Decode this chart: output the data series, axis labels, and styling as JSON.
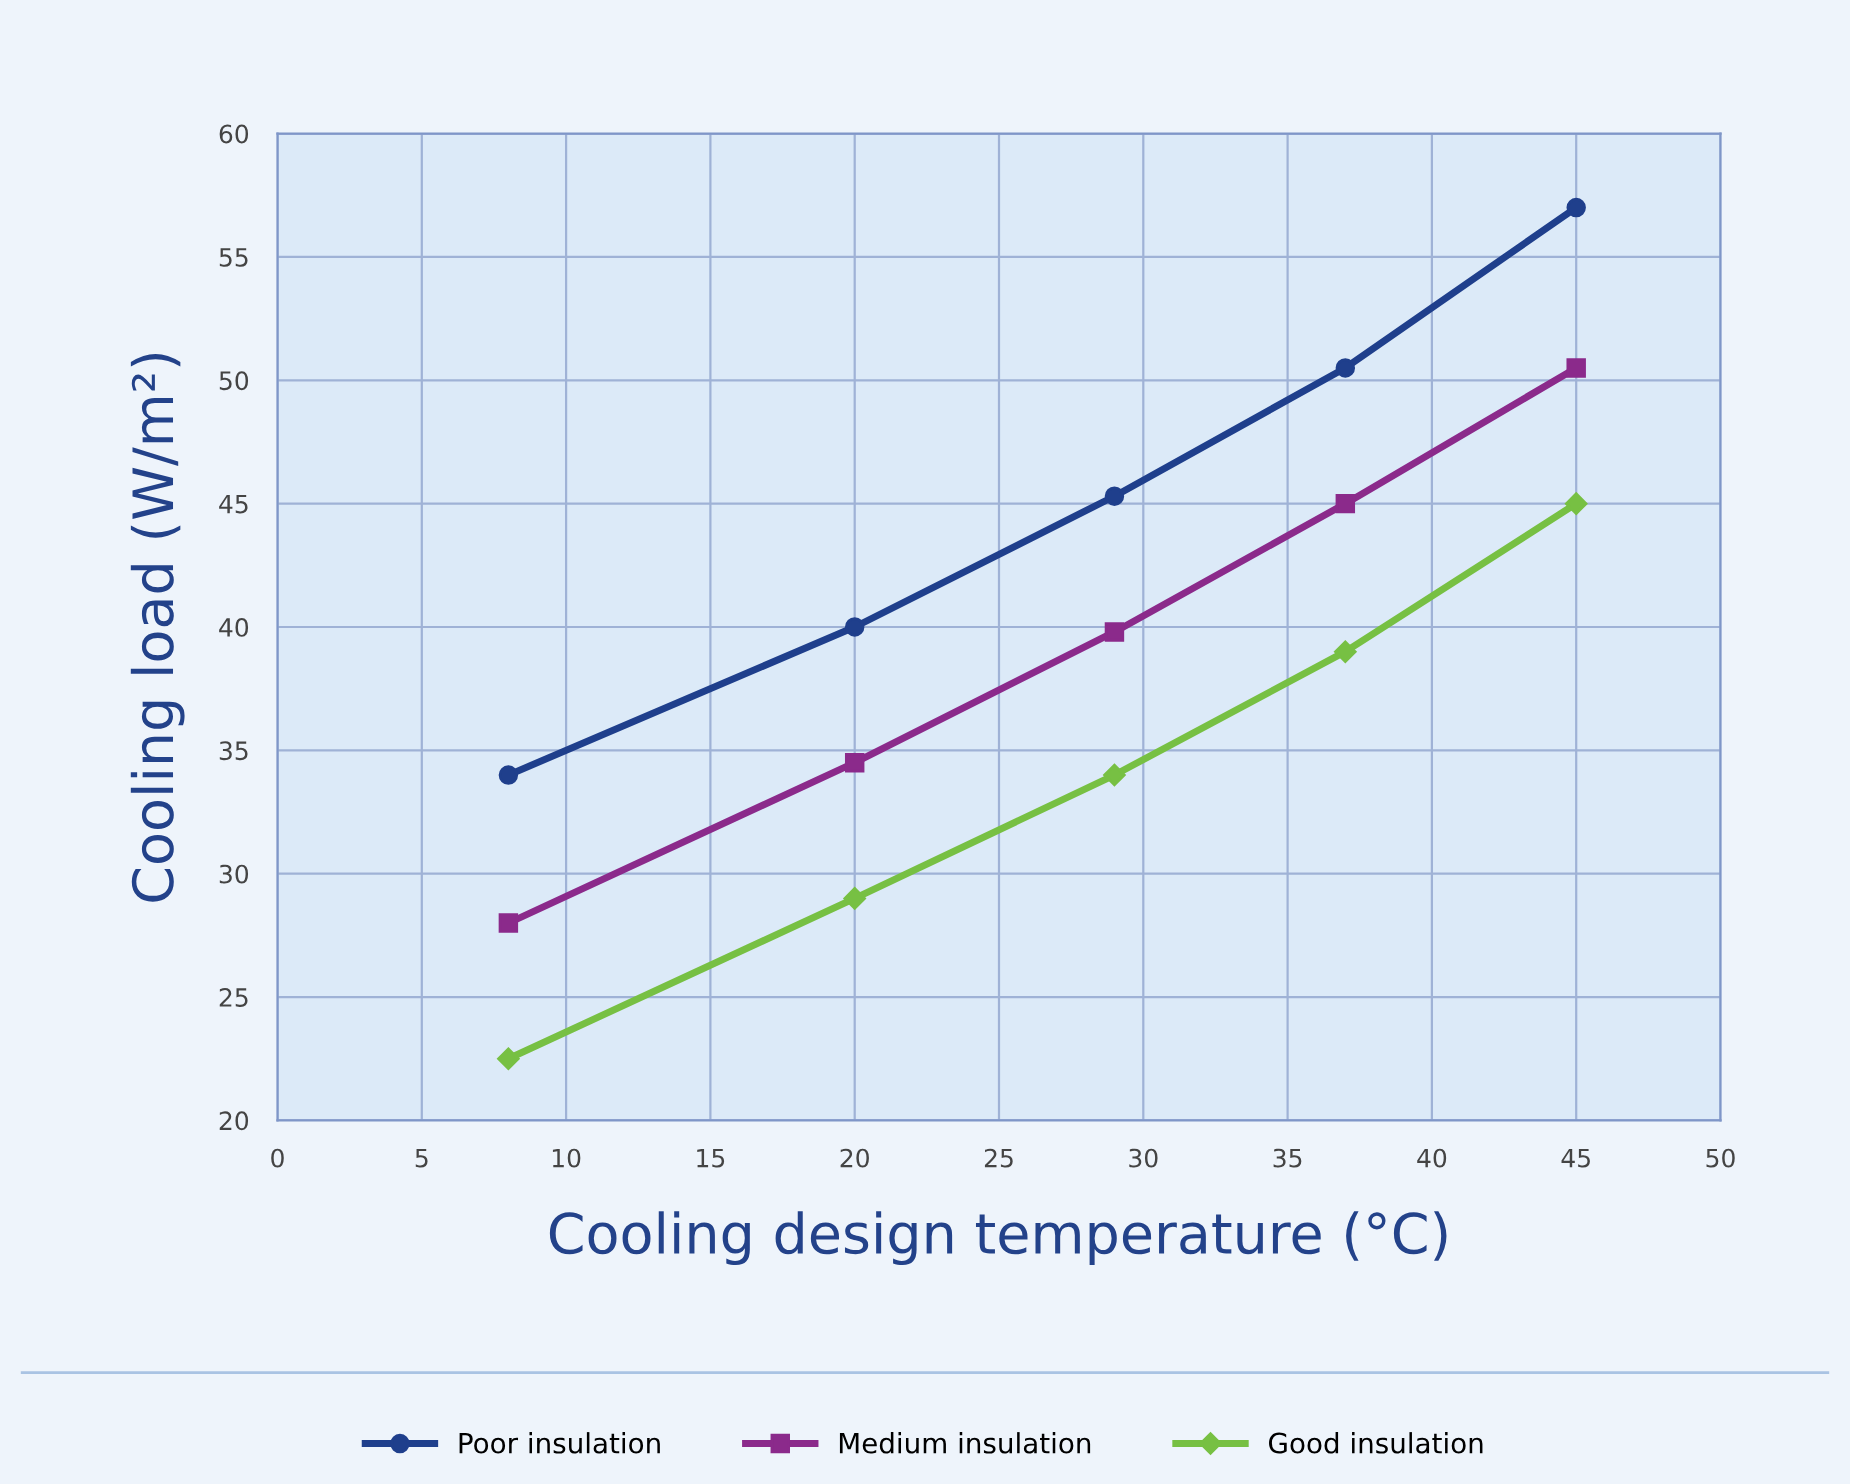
{
  "chart_data": {
    "type": "line",
    "xlabel": "Cooling design temperature (°C)",
    "ylabel": "Cooling load (W/m²)",
    "x": [
      8,
      20,
      29,
      37,
      45
    ],
    "series": [
      {
        "name": "Poor insulation",
        "color": "#1f3f8c",
        "marker": "circle",
        "values": [
          34,
          40,
          45.3,
          50.5,
          57
        ]
      },
      {
        "name": "Medium insulation",
        "color": "#8b2a8b",
        "marker": "square",
        "values": [
          28,
          34.5,
          39.8,
          45,
          50.5
        ]
      },
      {
        "name": "Good insulation",
        "color": "#77c043",
        "marker": "diamond",
        "values": [
          22.5,
          29,
          34,
          39,
          45
        ]
      }
    ],
    "xlim": [
      0,
      50
    ],
    "xticks": [
      0,
      5,
      10,
      15,
      20,
      25,
      30,
      35,
      40,
      45,
      50
    ],
    "ylim": [
      20,
      60
    ],
    "yticks": [
      20,
      25,
      30,
      35,
      40,
      45,
      50,
      55,
      60
    ],
    "grid": true,
    "legend": "bottom",
    "line_style": "solid"
  }
}
